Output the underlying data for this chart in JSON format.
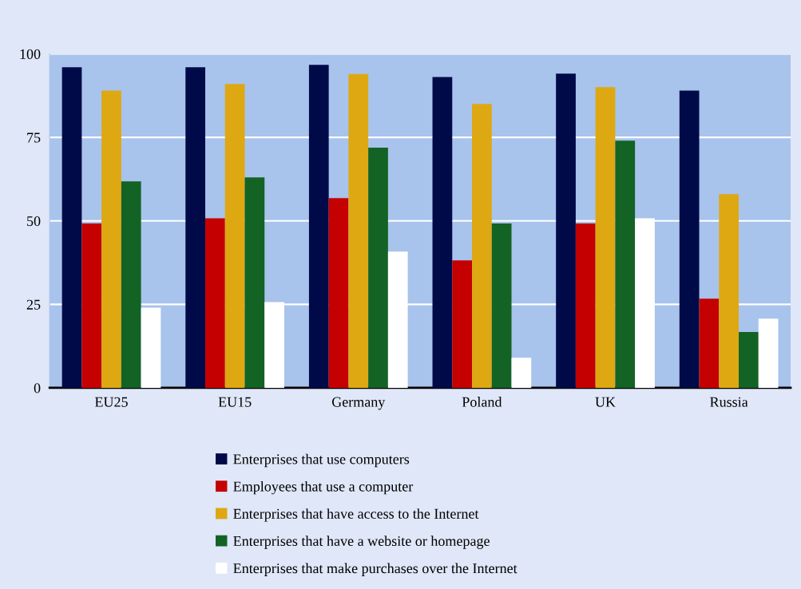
{
  "chart_data": {
    "type": "bar",
    "categories": [
      "EU25",
      "EU15",
      "Germany",
      "Poland",
      "UK",
      "Russia"
    ],
    "series": [
      {
        "name": "Enterprises that use computers",
        "color": "#000a48",
        "values": [
          96,
          96,
          96.7,
          93.1,
          94.1,
          89
        ]
      },
      {
        "name": "Employees that use a computer",
        "color": "#c40000",
        "values": [
          49.2,
          50.8,
          56.8,
          38.2,
          49.2,
          26.7
        ]
      },
      {
        "name": "Enterprises that have access to the Internet",
        "color": "#dea812",
        "values": [
          89,
          91,
          94,
          85,
          90,
          58
        ]
      },
      {
        "name": "Enterprises that have a website or homepage",
        "color": "#136324",
        "values": [
          61.8,
          63,
          71.9,
          49.2,
          74,
          16.7
        ]
      },
      {
        "name": "Enterprises that make purchases over the Internet",
        "color": "#ffffff",
        "values": [
          24,
          25.7,
          40.8,
          9,
          50.8,
          20.7
        ]
      }
    ],
    "ylim": [
      0,
      100
    ],
    "yticks": [
      0,
      25,
      50,
      75,
      100
    ],
    "grid": "y",
    "legend": "bottom"
  }
}
